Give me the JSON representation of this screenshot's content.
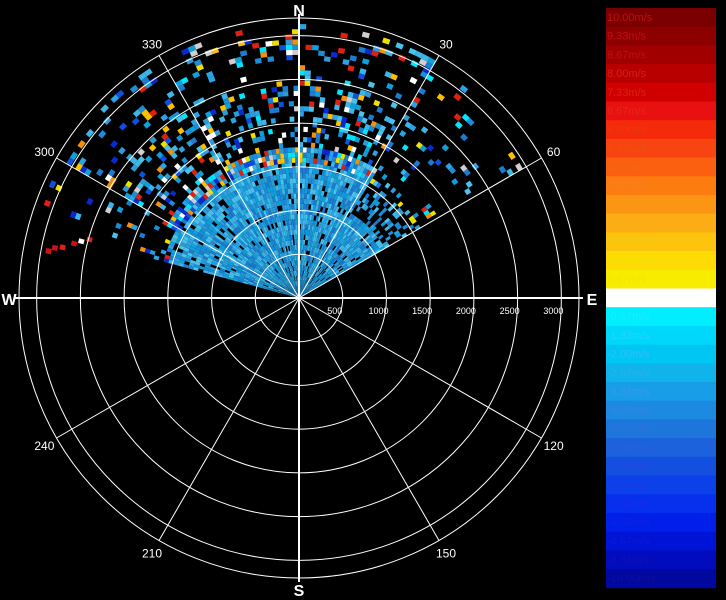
{
  "chart_data": {
    "type": "heatmap",
    "subtype": "polar-radar-velocity-ppi",
    "cardinal_labels": {
      "north": "N",
      "east": "E",
      "south": "S",
      "west": "W"
    },
    "azimuth_tick_labels": [
      "30",
      "60",
      "120",
      "150",
      "210",
      "240",
      "300",
      "330"
    ],
    "azimuth_ticks_deg": [
      30,
      60,
      120,
      150,
      210,
      240,
      300,
      330
    ],
    "range_ring_labels": [
      "500",
      "1000",
      "1500",
      "2000",
      "2500",
      "3000"
    ],
    "range_rings": [
      500,
      1000,
      1500,
      2000,
      2500,
      3000
    ],
    "range_max": 3000,
    "grid": true,
    "data_sector_deg": [
      285,
      60
    ],
    "colorbar": {
      "position": "right",
      "labels": [
        "10.00m/s",
        "9.33m/s",
        "8.67m/s",
        "8.00m/s",
        "7.33m/s",
        "6.67m/s",
        "6.00m/s",
        "5.33m/s",
        "4.67m/s",
        "4.00m/s",
        "3.33m/s",
        "2.67m/s",
        "2.00m/s",
        "1.33m/s",
        "0.67m/s",
        "0.00m/s",
        "-0.67m/s",
        "-1.33m/s",
        "-2.00m/s",
        "-2.67m/s",
        "-3.33m/s",
        "-4.00m/s",
        "-4.67m/s",
        "-5.33m/s",
        "-6.00m/s",
        "-6.67m/s",
        "-7.33m/s",
        "-8.00m/s",
        "-8.67m/s",
        "-9.33m/s",
        "-10.00m/s"
      ],
      "colors": [
        "#7a0000",
        "#8c0000",
        "#a00000",
        "#b80000",
        "#d00000",
        "#e81010",
        "#f42a0a",
        "#f84410",
        "#fa6010",
        "#fc7c10",
        "#fc9414",
        "#fcac14",
        "#fcc40c",
        "#fcdc04",
        "#f8ec00",
        "#ffffff",
        "#00eeff",
        "#00d8fb",
        "#00c6f4",
        "#10b4ec",
        "#189ee6",
        "#1c8ae0",
        "#1c76dc",
        "#1c62dc",
        "#1450e0",
        "#0c40e8",
        "#0630ec",
        "#0020ea",
        "#0014d8",
        "#000cbe",
        "#0008a0"
      ],
      "text_colors": [
        "#c01010",
        "#c01010",
        "#c01010",
        "#d02010",
        "#d82010",
        "#e02c10",
        "#e83810",
        "#ec5010",
        "#f06818",
        "#f48020",
        "#f89818",
        "#f8b018",
        "#f8c810",
        "#f8e000",
        "#f0e800",
        "#ffffff",
        "#20e8ff",
        "#20d4ff",
        "#30c0f8",
        "#30acf0",
        "#3898e8",
        "#3484e4",
        "#3070e0",
        "#2c5ee0",
        "#2848e4",
        "#2038e8",
        "#1c2ce8",
        "#1020e0",
        "#1018cc",
        "#1010b4",
        "#100c9c"
      ]
    }
  }
}
